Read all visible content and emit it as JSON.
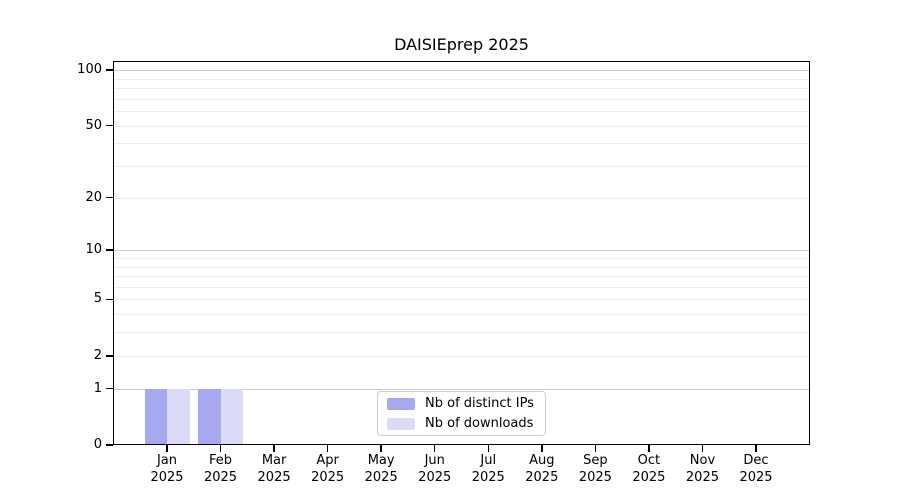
{
  "chart_data": {
    "type": "bar",
    "title": "DAISIEprep 2025",
    "y_scale": "log1p",
    "x_year": "2025",
    "categories": [
      "Jan",
      "Feb",
      "Mar",
      "Apr",
      "May",
      "Jun",
      "Jul",
      "Aug",
      "Sep",
      "Oct",
      "Nov",
      "Dec"
    ],
    "series": [
      {
        "name": "Nb of distinct IPs",
        "color": "#a8a8f0",
        "values": [
          1,
          1,
          0,
          0,
          0,
          0,
          0,
          0,
          0,
          0,
          0,
          0
        ]
      },
      {
        "name": "Nb of downloads",
        "color": "#dbdbf8",
        "values": [
          1,
          1,
          0,
          0,
          0,
          0,
          0,
          0,
          0,
          0,
          0,
          0
        ]
      }
    ],
    "y_ticks": [
      0,
      1,
      2,
      5,
      10,
      20,
      50,
      100
    ],
    "y_major_gridlines": [
      1,
      10,
      100
    ],
    "y_minor_gridlines": [
      2,
      3,
      4,
      5,
      6,
      7,
      8,
      9,
      20,
      30,
      40,
      50,
      60,
      70,
      80,
      90
    ],
    "y_axis_max": 112,
    "ylim": [
      0,
      112
    ],
    "grid": "horizontal",
    "legend_position": "bottom-center",
    "colors": {
      "grid_major": "#c9c9c9",
      "grid_minor": "#ededed",
      "axis": "#000000",
      "text": "#000000",
      "background": "#ffffff"
    }
  }
}
